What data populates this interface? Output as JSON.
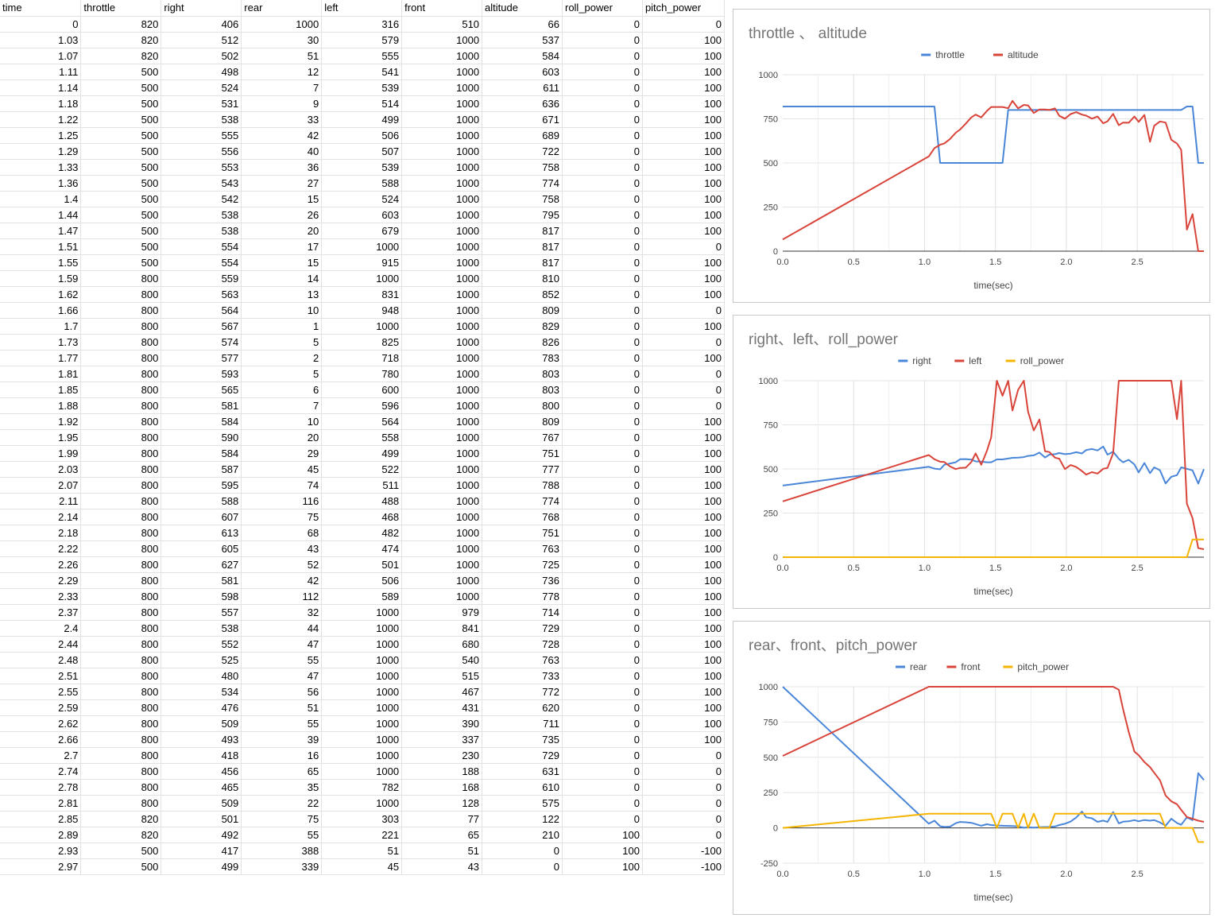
{
  "sheet": {
    "columns": [
      "time",
      "throttle",
      "right",
      "rear",
      "left",
      "front",
      "altitude",
      "roll_power",
      "pitch_power"
    ],
    "rows": [
      [
        "0",
        "820",
        "406",
        "1000",
        "316",
        "510",
        "66",
        "0",
        "0"
      ],
      [
        "1.03",
        "820",
        "512",
        "30",
        "579",
        "1000",
        "537",
        "0",
        "100"
      ],
      [
        "1.07",
        "820",
        "502",
        "51",
        "555",
        "1000",
        "584",
        "0",
        "100"
      ],
      [
        "1.11",
        "500",
        "498",
        "12",
        "541",
        "1000",
        "603",
        "0",
        "100"
      ],
      [
        "1.14",
        "500",
        "524",
        "7",
        "539",
        "1000",
        "611",
        "0",
        "100"
      ],
      [
        "1.18",
        "500",
        "531",
        "9",
        "514",
        "1000",
        "636",
        "0",
        "100"
      ],
      [
        "1.22",
        "500",
        "538",
        "33",
        "499",
        "1000",
        "671",
        "0",
        "100"
      ],
      [
        "1.25",
        "500",
        "555",
        "42",
        "506",
        "1000",
        "689",
        "0",
        "100"
      ],
      [
        "1.29",
        "500",
        "556",
        "40",
        "507",
        "1000",
        "722",
        "0",
        "100"
      ],
      [
        "1.33",
        "500",
        "553",
        "36",
        "539",
        "1000",
        "758",
        "0",
        "100"
      ],
      [
        "1.36",
        "500",
        "543",
        "27",
        "588",
        "1000",
        "774",
        "0",
        "100"
      ],
      [
        "1.4",
        "500",
        "542",
        "15",
        "524",
        "1000",
        "758",
        "0",
        "100"
      ],
      [
        "1.44",
        "500",
        "538",
        "26",
        "603",
        "1000",
        "795",
        "0",
        "100"
      ],
      [
        "1.47",
        "500",
        "538",
        "20",
        "679",
        "1000",
        "817",
        "0",
        "100"
      ],
      [
        "1.51",
        "500",
        "554",
        "17",
        "1000",
        "1000",
        "817",
        "0",
        "0"
      ],
      [
        "1.55",
        "500",
        "554",
        "15",
        "915",
        "1000",
        "817",
        "0",
        "100"
      ],
      [
        "1.59",
        "800",
        "559",
        "14",
        "1000",
        "1000",
        "810",
        "0",
        "100"
      ],
      [
        "1.62",
        "800",
        "563",
        "13",
        "831",
        "1000",
        "852",
        "0",
        "100"
      ],
      [
        "1.66",
        "800",
        "564",
        "10",
        "948",
        "1000",
        "809",
        "0",
        "0"
      ],
      [
        "1.7",
        "800",
        "567",
        "1",
        "1000",
        "1000",
        "829",
        "0",
        "100"
      ],
      [
        "1.73",
        "800",
        "574",
        "5",
        "825",
        "1000",
        "826",
        "0",
        "0"
      ],
      [
        "1.77",
        "800",
        "577",
        "2",
        "718",
        "1000",
        "783",
        "0",
        "100"
      ],
      [
        "1.81",
        "800",
        "593",
        "5",
        "780",
        "1000",
        "803",
        "0",
        "0"
      ],
      [
        "1.85",
        "800",
        "565",
        "6",
        "600",
        "1000",
        "803",
        "0",
        "0"
      ],
      [
        "1.88",
        "800",
        "581",
        "7",
        "596",
        "1000",
        "800",
        "0",
        "0"
      ],
      [
        "1.92",
        "800",
        "584",
        "10",
        "564",
        "1000",
        "809",
        "0",
        "100"
      ],
      [
        "1.95",
        "800",
        "590",
        "20",
        "558",
        "1000",
        "767",
        "0",
        "100"
      ],
      [
        "1.99",
        "800",
        "584",
        "29",
        "499",
        "1000",
        "751",
        "0",
        "100"
      ],
      [
        "2.03",
        "800",
        "587",
        "45",
        "522",
        "1000",
        "777",
        "0",
        "100"
      ],
      [
        "2.07",
        "800",
        "595",
        "74",
        "511",
        "1000",
        "788",
        "0",
        "100"
      ],
      [
        "2.11",
        "800",
        "588",
        "116",
        "488",
        "1000",
        "774",
        "0",
        "100"
      ],
      [
        "2.14",
        "800",
        "607",
        "75",
        "468",
        "1000",
        "768",
        "0",
        "100"
      ],
      [
        "2.18",
        "800",
        "613",
        "68",
        "482",
        "1000",
        "751",
        "0",
        "100"
      ],
      [
        "2.22",
        "800",
        "605",
        "43",
        "474",
        "1000",
        "763",
        "0",
        "100"
      ],
      [
        "2.26",
        "800",
        "627",
        "52",
        "501",
        "1000",
        "725",
        "0",
        "100"
      ],
      [
        "2.29",
        "800",
        "581",
        "42",
        "506",
        "1000",
        "736",
        "0",
        "100"
      ],
      [
        "2.33",
        "800",
        "598",
        "112",
        "589",
        "1000",
        "778",
        "0",
        "100"
      ],
      [
        "2.37",
        "800",
        "557",
        "32",
        "1000",
        "979",
        "714",
        "0",
        "100"
      ],
      [
        "2.4",
        "800",
        "538",
        "44",
        "1000",
        "841",
        "729",
        "0",
        "100"
      ],
      [
        "2.44",
        "800",
        "552",
        "47",
        "1000",
        "680",
        "728",
        "0",
        "100"
      ],
      [
        "2.48",
        "800",
        "525",
        "55",
        "1000",
        "540",
        "763",
        "0",
        "100"
      ],
      [
        "2.51",
        "800",
        "480",
        "47",
        "1000",
        "515",
        "733",
        "0",
        "100"
      ],
      [
        "2.55",
        "800",
        "534",
        "56",
        "1000",
        "467",
        "772",
        "0",
        "100"
      ],
      [
        "2.59",
        "800",
        "476",
        "51",
        "1000",
        "431",
        "620",
        "0",
        "100"
      ],
      [
        "2.62",
        "800",
        "509",
        "55",
        "1000",
        "390",
        "711",
        "0",
        "100"
      ],
      [
        "2.66",
        "800",
        "493",
        "39",
        "1000",
        "337",
        "735",
        "0",
        "100"
      ],
      [
        "2.7",
        "800",
        "418",
        "16",
        "1000",
        "230",
        "729",
        "0",
        "0"
      ],
      [
        "2.74",
        "800",
        "456",
        "65",
        "1000",
        "188",
        "631",
        "0",
        "0"
      ],
      [
        "2.78",
        "800",
        "465",
        "35",
        "782",
        "168",
        "610",
        "0",
        "0"
      ],
      [
        "2.81",
        "800",
        "509",
        "22",
        "1000",
        "128",
        "575",
        "0",
        "0"
      ],
      [
        "2.85",
        "820",
        "501",
        "75",
        "303",
        "77",
        "122",
        "0",
        "0"
      ],
      [
        "2.89",
        "820",
        "492",
        "55",
        "221",
        "65",
        "210",
        "100",
        "0"
      ],
      [
        "2.93",
        "500",
        "417",
        "388",
        "51",
        "51",
        "0",
        "100",
        "-100"
      ],
      [
        "2.97",
        "500",
        "499",
        "339",
        "45",
        "43",
        "0",
        "100",
        "-100"
      ]
    ]
  },
  "chart_data": [
    {
      "type": "line",
      "title": "throttle 、 altitude",
      "xlabel": "time(sec)",
      "ylabel": "",
      "xlim": [
        0,
        2.97
      ],
      "ylim": [
        0,
        1000
      ],
      "xticks": [
        "0.0",
        "0.5",
        "1.0",
        "1.5",
        "2.0",
        "2.5"
      ],
      "yticks": [
        "0",
        "250",
        "500",
        "750",
        "1000"
      ],
      "grid": true,
      "legend": "top-center",
      "series": [
        {
          "name": "throttle",
          "color": "#4a86d8",
          "column": "throttle"
        },
        {
          "name": "altitude",
          "color": "#d9443a",
          "column": "altitude"
        }
      ]
    },
    {
      "type": "line",
      "title": "right、left、roll_power",
      "xlabel": "time(sec)",
      "ylabel": "",
      "xlim": [
        0,
        2.97
      ],
      "ylim": [
        0,
        1000
      ],
      "xticks": [
        "0.0",
        "0.5",
        "1.0",
        "1.5",
        "2.0",
        "2.5"
      ],
      "yticks": [
        "0",
        "250",
        "500",
        "750",
        "1000"
      ],
      "grid": true,
      "legend": "top-center",
      "series": [
        {
          "name": "right",
          "color": "#4a86d8",
          "column": "right"
        },
        {
          "name": "left",
          "color": "#d9443a",
          "column": "left"
        },
        {
          "name": "roll_power",
          "color": "#f4b400",
          "column": "roll_power"
        }
      ]
    },
    {
      "type": "line",
      "title": "rear、front、pitch_power",
      "xlabel": "time(sec)",
      "ylabel": "",
      "xlim": [
        0,
        2.97
      ],
      "ylim": [
        -250,
        1000
      ],
      "xticks": [
        "0.0",
        "0.5",
        "1.0",
        "1.5",
        "2.0",
        "2.5"
      ],
      "yticks": [
        "-250",
        "0",
        "250",
        "500",
        "750",
        "1000"
      ],
      "grid": true,
      "legend": "top-center",
      "series": [
        {
          "name": "rear",
          "color": "#4a86d8",
          "column": "rear"
        },
        {
          "name": "front",
          "color": "#d9443a",
          "column": "front"
        },
        {
          "name": "pitch_power",
          "color": "#f4b400",
          "column": "pitch_power"
        }
      ]
    }
  ]
}
